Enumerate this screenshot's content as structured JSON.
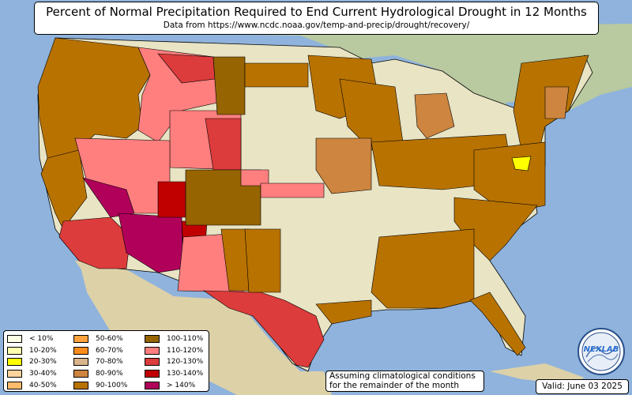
{
  "title": "Percent of Normal Precipitation Required to End Current Hydrological Drought in 12 Months",
  "subtitle": "Data from https://www.ncdc.noaa.gov/temp-and-precip/drought/recovery/",
  "note_line1": "Assuming climatological conditions",
  "note_line2": "for the remainder of the month",
  "valid": "Valid: June 03 2025",
  "logo_text": "NEXLAB",
  "colors": {
    "ocean": "#8fb3dc",
    "land": "#e8e4c4",
    "mexico": "#ddd1a8",
    "canada": "#b9c9a0"
  },
  "legend": [
    {
      "label": "< 10%",
      "color": "#ffffe5"
    },
    {
      "label": "10-20%",
      "color": "#ffffb0"
    },
    {
      "label": "20-30%",
      "color": "#ffff00"
    },
    {
      "label": "30-40%",
      "color": "#fdd49e"
    },
    {
      "label": "40-50%",
      "color": "#fdbb6c"
    },
    {
      "label": "50-60%",
      "color": "#fda23d"
    },
    {
      "label": "60-70%",
      "color": "#fb8c1c"
    },
    {
      "label": "70-80%",
      "color": "#d9b48a"
    },
    {
      "label": "80-90%",
      "color": "#cd853f"
    },
    {
      "label": "90-100%",
      "color": "#b87200"
    },
    {
      "label": "100-110%",
      "color": "#966400"
    },
    {
      "label": "110-120%",
      "color": "#ff7f7f"
    },
    {
      "label": "120-130%",
      "color": "#dc3c3c"
    },
    {
      "label": "130-140%",
      "color": "#c00000"
    },
    {
      "label": "> 140%",
      "color": "#b0005a"
    }
  ],
  "regions": [
    {
      "name": "pacific-northwest",
      "category": "90-100%"
    },
    {
      "name": "northern-california-valley",
      "category": "90-100%"
    },
    {
      "name": "northern-rockies",
      "category": "110-120%"
    },
    {
      "name": "montana-east",
      "category": "120-130%"
    },
    {
      "name": "nevada-utah",
      "category": "110-120%"
    },
    {
      "name": "southern-nevada",
      "category": "> 140%"
    },
    {
      "name": "southern-california",
      "category": "120-130%"
    },
    {
      "name": "arizona-core",
      "category": "> 140%"
    },
    {
      "name": "arizona-red",
      "category": "130-140%"
    },
    {
      "name": "new-mexico",
      "category": "110-120%"
    },
    {
      "name": "west-texas",
      "category": "120-130%"
    },
    {
      "name": "colorado-plains",
      "category": "100-110%"
    },
    {
      "name": "great-plains-light",
      "category": "< 10%"
    },
    {
      "name": "upper-midwest",
      "category": "90-100%"
    },
    {
      "name": "ohio-valley",
      "category": "90-100%"
    },
    {
      "name": "southeast-coast",
      "category": "90-100%"
    },
    {
      "name": "northeast",
      "category": "90-100%"
    },
    {
      "name": "maryland-yellow",
      "category": "20-30%"
    },
    {
      "name": "florida",
      "category": "90-100%"
    },
    {
      "name": "gulf-coast-texas",
      "category": "120-130%"
    }
  ]
}
